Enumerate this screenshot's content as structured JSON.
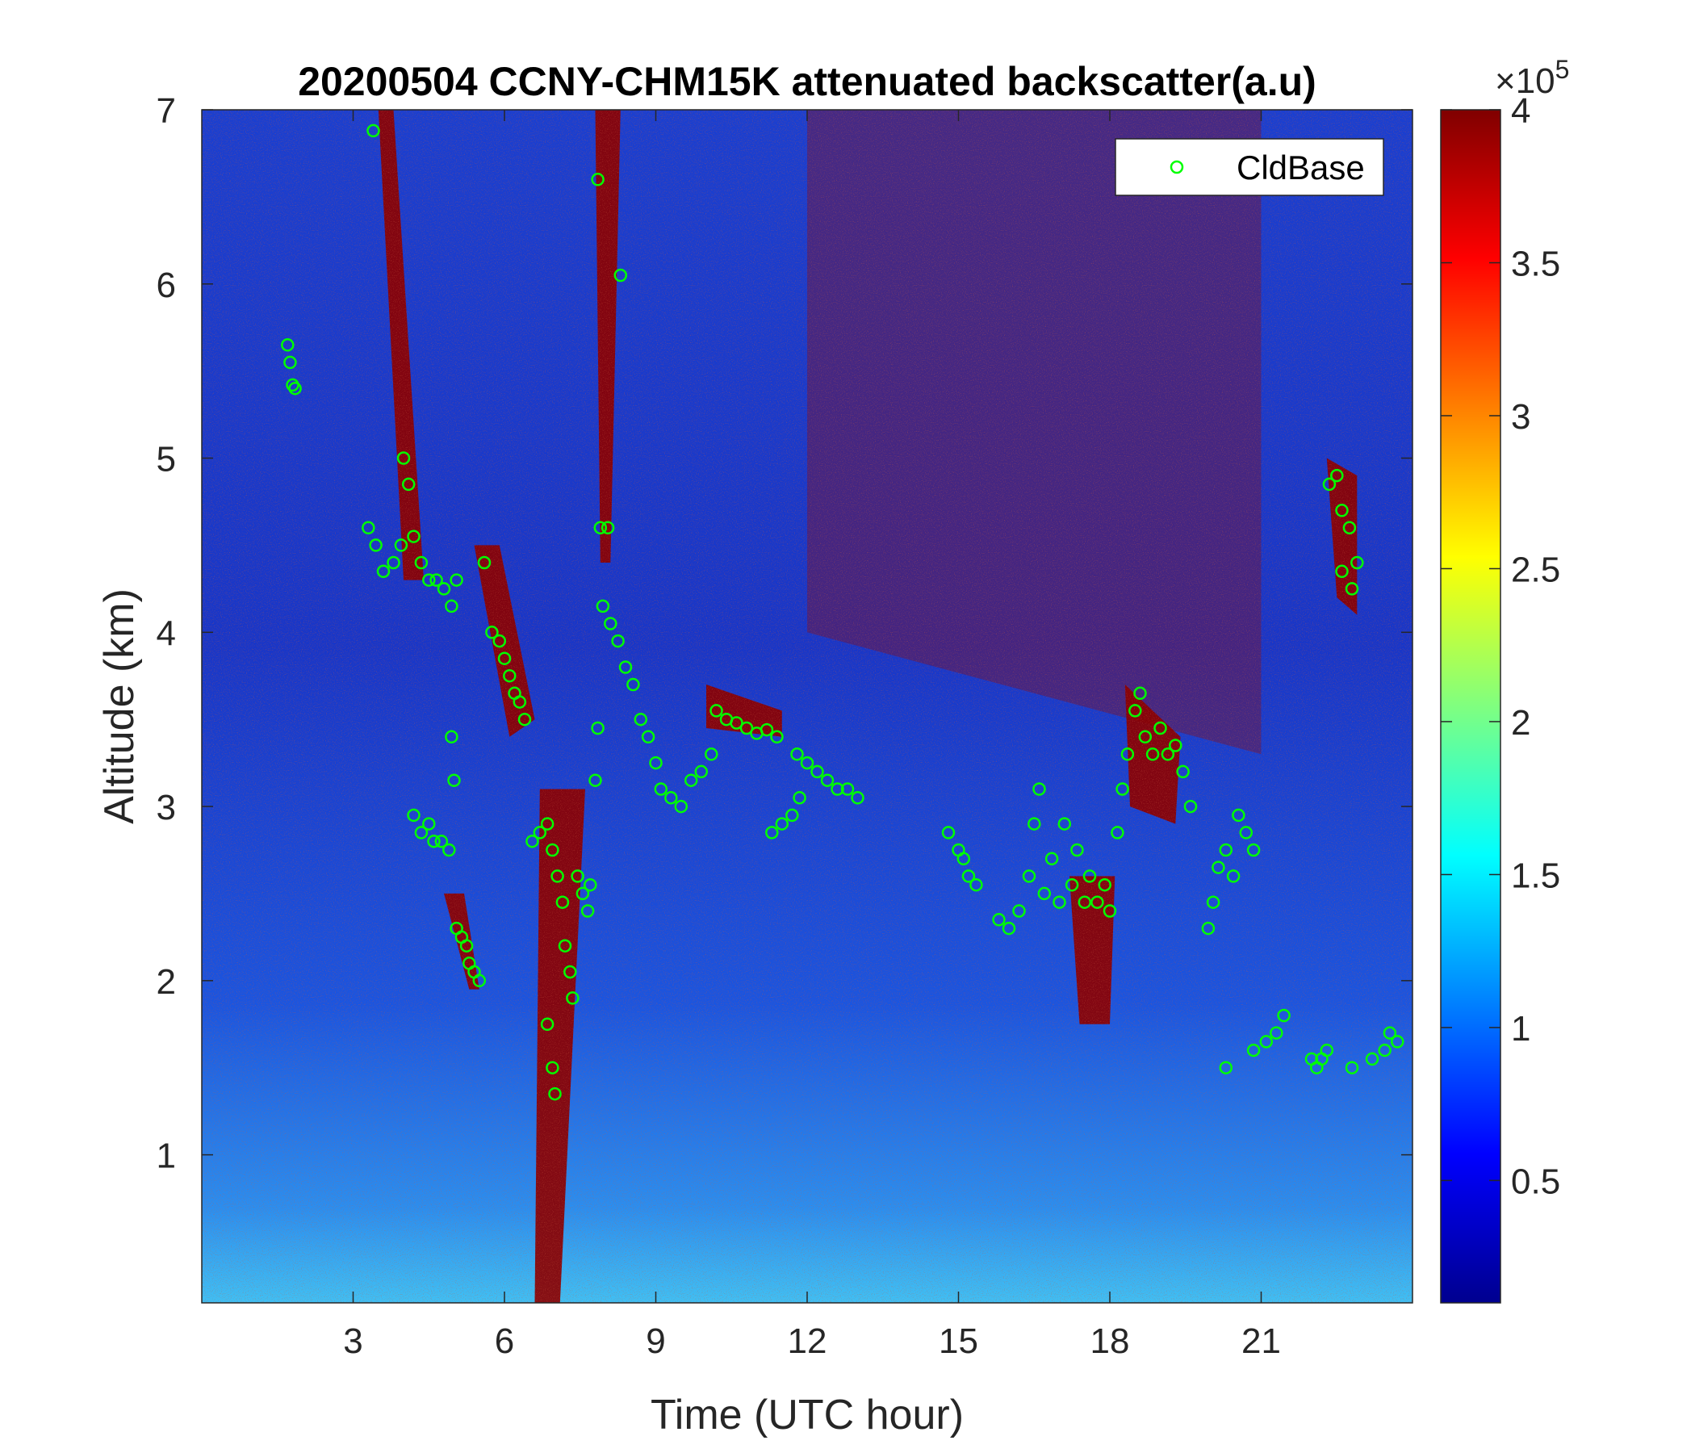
{
  "chart_data": {
    "type": "heatmap",
    "title": "20200504 CCNY-CHM15K attenuated backscatter(a.u)",
    "xlabel": "Time (UTC hour)",
    "ylabel": "Altitude (km)",
    "xlim": [
      0,
      24
    ],
    "ylim": [
      0.15,
      7
    ],
    "xticks": [
      3,
      6,
      9,
      12,
      15,
      18,
      21
    ],
    "yticks": [
      1,
      2,
      3,
      4,
      5,
      6,
      7
    ],
    "colorbar": {
      "colormap": "jet",
      "range": [
        10000,
        400000
      ],
      "ticks": [
        0.5,
        1,
        1.5,
        2,
        2.5,
        3,
        3.5,
        4
      ],
      "exponent_label": "×10",
      "exponent_power": "5"
    },
    "legend": {
      "location": "top-right",
      "entries": [
        "CldBase"
      ]
    },
    "series": [
      {
        "name": "CldBase",
        "marker": "circle",
        "color": "#00ff00",
        "points": [
          [
            1.7,
            5.65
          ],
          [
            1.75,
            5.55
          ],
          [
            1.8,
            5.42
          ],
          [
            1.85,
            5.4
          ],
          [
            3.4,
            6.88
          ],
          [
            3.3,
            4.6
          ],
          [
            3.45,
            4.5
          ],
          [
            3.6,
            4.35
          ],
          [
            3.8,
            4.4
          ],
          [
            3.95,
            4.5
          ],
          [
            4.0,
            5.0
          ],
          [
            4.1,
            4.85
          ],
          [
            4.2,
            4.55
          ],
          [
            4.35,
            4.4
          ],
          [
            4.5,
            4.3
          ],
          [
            4.65,
            4.3
          ],
          [
            4.8,
            4.25
          ],
          [
            4.95,
            4.15
          ],
          [
            5.05,
            4.3
          ],
          [
            4.2,
            2.95
          ],
          [
            4.35,
            2.85
          ],
          [
            4.5,
            2.9
          ],
          [
            4.6,
            2.8
          ],
          [
            4.75,
            2.8
          ],
          [
            4.9,
            2.75
          ],
          [
            4.95,
            3.4
          ],
          [
            5.0,
            3.15
          ],
          [
            5.05,
            2.3
          ],
          [
            5.15,
            2.25
          ],
          [
            5.25,
            2.2
          ],
          [
            5.3,
            2.1
          ],
          [
            5.4,
            2.05
          ],
          [
            5.5,
            2.0
          ],
          [
            5.6,
            4.4
          ],
          [
            5.75,
            4.0
          ],
          [
            5.9,
            3.95
          ],
          [
            6.0,
            3.85
          ],
          [
            6.1,
            3.75
          ],
          [
            6.2,
            3.65
          ],
          [
            6.3,
            3.6
          ],
          [
            6.4,
            3.5
          ],
          [
            6.55,
            2.8
          ],
          [
            6.7,
            2.85
          ],
          [
            6.85,
            2.9
          ],
          [
            6.95,
            2.75
          ],
          [
            7.05,
            2.6
          ],
          [
            7.15,
            2.45
          ],
          [
            7.2,
            2.2
          ],
          [
            7.3,
            2.05
          ],
          [
            7.35,
            1.9
          ],
          [
            6.85,
            1.75
          ],
          [
            6.95,
            1.5
          ],
          [
            7.0,
            1.35
          ],
          [
            7.45,
            2.6
          ],
          [
            7.55,
            2.5
          ],
          [
            7.65,
            2.4
          ],
          [
            7.7,
            2.55
          ],
          [
            7.8,
            3.15
          ],
          [
            7.85,
            3.45
          ],
          [
            7.85,
            6.6
          ],
          [
            8.3,
            6.05
          ],
          [
            7.9,
            4.6
          ],
          [
            8.05,
            4.6
          ],
          [
            7.95,
            4.15
          ],
          [
            8.1,
            4.05
          ],
          [
            8.25,
            3.95
          ],
          [
            8.4,
            3.8
          ],
          [
            8.55,
            3.7
          ],
          [
            8.7,
            3.5
          ],
          [
            8.85,
            3.4
          ],
          [
            9.0,
            3.25
          ],
          [
            9.1,
            3.1
          ],
          [
            9.3,
            3.05
          ],
          [
            9.5,
            3.0
          ],
          [
            9.7,
            3.15
          ],
          [
            9.9,
            3.2
          ],
          [
            10.1,
            3.3
          ],
          [
            10.2,
            3.55
          ],
          [
            10.4,
            3.5
          ],
          [
            10.6,
            3.48
          ],
          [
            10.8,
            3.45
          ],
          [
            11.0,
            3.42
          ],
          [
            11.2,
            3.44
          ],
          [
            11.4,
            3.4
          ],
          [
            11.3,
            2.85
          ],
          [
            11.5,
            2.9
          ],
          [
            11.7,
            2.95
          ],
          [
            11.85,
            3.05
          ],
          [
            11.8,
            3.3
          ],
          [
            12.0,
            3.25
          ],
          [
            12.2,
            3.2
          ],
          [
            12.4,
            3.15
          ],
          [
            12.6,
            3.1
          ],
          [
            12.8,
            3.1
          ],
          [
            13.0,
            3.05
          ],
          [
            14.8,
            2.85
          ],
          [
            15.0,
            2.75
          ],
          [
            15.1,
            2.7
          ],
          [
            15.2,
            2.6
          ],
          [
            15.35,
            2.55
          ],
          [
            15.8,
            2.35
          ],
          [
            16.0,
            2.3
          ],
          [
            16.2,
            2.4
          ],
          [
            16.4,
            2.6
          ],
          [
            16.5,
            2.9
          ],
          [
            16.6,
            3.1
          ],
          [
            16.7,
            2.5
          ],
          [
            16.85,
            2.7
          ],
          [
            17.0,
            2.45
          ],
          [
            17.1,
            2.9
          ],
          [
            17.25,
            2.55
          ],
          [
            17.35,
            2.75
          ],
          [
            17.5,
            2.45
          ],
          [
            17.6,
            2.6
          ],
          [
            17.75,
            2.45
          ],
          [
            17.9,
            2.55
          ],
          [
            18.0,
            2.4
          ],
          [
            18.15,
            2.85
          ],
          [
            18.25,
            3.1
          ],
          [
            18.35,
            3.3
          ],
          [
            18.5,
            3.55
          ],
          [
            18.6,
            3.65
          ],
          [
            18.7,
            3.4
          ],
          [
            18.85,
            3.3
          ],
          [
            19.0,
            3.45
          ],
          [
            19.15,
            3.3
          ],
          [
            19.3,
            3.35
          ],
          [
            19.45,
            3.2
          ],
          [
            19.6,
            3.0
          ],
          [
            19.95,
            2.3
          ],
          [
            20.05,
            2.45
          ],
          [
            20.15,
            2.65
          ],
          [
            20.3,
            2.75
          ],
          [
            20.45,
            2.6
          ],
          [
            20.55,
            2.95
          ],
          [
            20.7,
            2.85
          ],
          [
            20.85,
            2.75
          ],
          [
            20.3,
            1.5
          ],
          [
            20.85,
            1.6
          ],
          [
            21.1,
            1.65
          ],
          [
            21.3,
            1.7
          ],
          [
            21.45,
            1.8
          ],
          [
            22.0,
            1.55
          ],
          [
            22.1,
            1.5
          ],
          [
            22.2,
            1.55
          ],
          [
            22.3,
            1.6
          ],
          [
            22.8,
            1.5
          ],
          [
            23.2,
            1.55
          ],
          [
            23.45,
            1.6
          ],
          [
            23.55,
            1.7
          ],
          [
            23.7,
            1.65
          ],
          [
            22.35,
            4.85
          ],
          [
            22.5,
            4.9
          ],
          [
            22.6,
            4.7
          ],
          [
            22.75,
            4.6
          ],
          [
            22.6,
            4.35
          ],
          [
            22.8,
            4.25
          ],
          [
            22.9,
            4.4
          ]
        ]
      }
    ]
  }
}
